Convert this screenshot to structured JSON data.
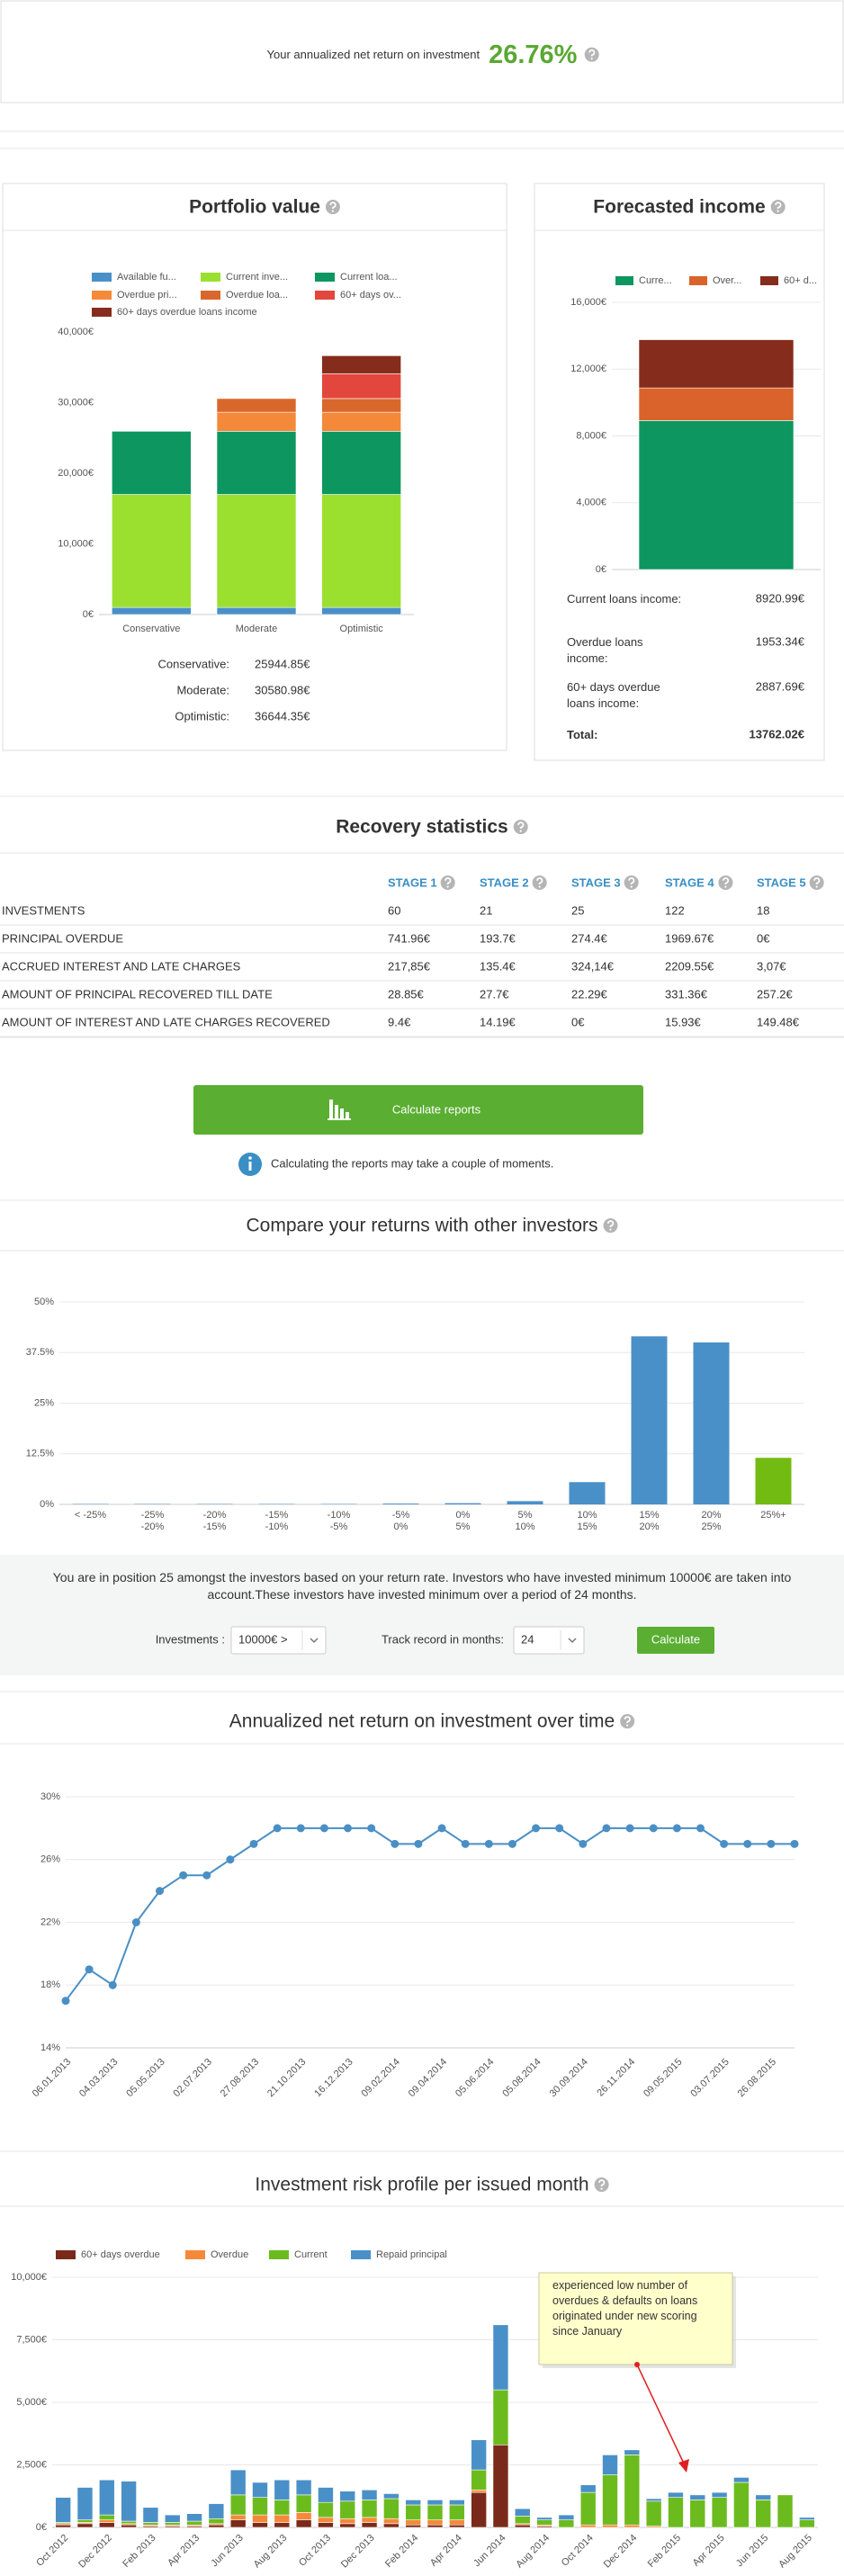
{
  "header": {
    "text": "Your annualized net return on investment",
    "value": "26.76%"
  },
  "chart_data": [
    {
      "type": "bar",
      "stacked": true,
      "title": "Portfolio value",
      "categories": [
        "Conservative",
        "Moderate",
        "Optimistic"
      ],
      "series": [
        {
          "name": "Available fu...",
          "color": "#4a90c8",
          "values": [
            1000,
            1000,
            1000
          ]
        },
        {
          "name": "Current inve...",
          "color": "#9be02f",
          "values": [
            16000,
            16000,
            16000
          ]
        },
        {
          "name": "Current loa...",
          "color": "#0e9660",
          "values": [
            8945,
            8945,
            8945
          ]
        },
        {
          "name": "Overdue pri...",
          "color": "#f5893a",
          "values": [
            0,
            2700,
            2700
          ]
        },
        {
          "name": "Overdue loa...",
          "color": "#d9672c",
          "values": [
            0,
            1936,
            1936
          ]
        },
        {
          "name": "60+ days ov...",
          "color": "#e2463c",
          "values": [
            0,
            0,
            3500
          ]
        },
        {
          "name": "60+ days overdue loans income",
          "color": "#862c1c",
          "values": [
            0,
            0,
            2563
          ]
        }
      ],
      "ylim": [
        0,
        40000
      ],
      "yticks": [
        {
          "value": 0,
          "label": "0€"
        },
        {
          "value": 10000,
          "label": "10,000€"
        },
        {
          "value": 20000,
          "label": "20,000€"
        },
        {
          "value": 30000,
          "label": "30,000€"
        },
        {
          "value": 40000,
          "label": "40,000€"
        }
      ],
      "grid": false
    },
    {
      "type": "bar",
      "stacked": true,
      "title": "Forecasted income",
      "categories": [
        null
      ],
      "series": [
        {
          "name": "Curre...",
          "color": "#0e9660",
          "values": [
            8920.99
          ]
        },
        {
          "name": "Over...",
          "color": "#d9632a",
          "values": [
            1953.34
          ]
        },
        {
          "name": "60+ d...",
          "color": "#862c1c",
          "values": [
            2887.69
          ]
        }
      ],
      "ylim": [
        0,
        16000
      ],
      "yticks": [
        {
          "value": 0,
          "label": "0€"
        },
        {
          "value": 4000,
          "label": "4,000€"
        },
        {
          "value": 8000,
          "label": "8,000€"
        },
        {
          "value": 12000,
          "label": "12,000€"
        },
        {
          "value": 16000,
          "label": "16,000€"
        }
      ],
      "grid": true
    },
    {
      "type": "bar",
      "title": "Compare your returns with other investors",
      "categories": [
        [
          "< -25%"
        ],
        [
          "-25%",
          "-20%"
        ],
        [
          "-20%",
          "-15%"
        ],
        [
          "-15%",
          "-10%"
        ],
        [
          "-10%",
          "-5%"
        ],
        [
          "-5%",
          "0%"
        ],
        [
          "0%",
          "5%"
        ],
        [
          "5%",
          "10%"
        ],
        [
          "10%",
          "15%"
        ],
        [
          "15%",
          "20%"
        ],
        [
          "20%",
          "25%"
        ],
        [
          "25%+"
        ]
      ],
      "values": [
        0.1,
        0.1,
        0.1,
        0.1,
        0.1,
        0.2,
        0.3,
        0.8,
        5.5,
        41.5,
        40,
        11.5
      ],
      "colors": [
        "#4a90c8",
        "#4a90c8",
        "#4a90c8",
        "#4a90c8",
        "#4a90c8",
        "#4a90c8",
        "#4a90c8",
        "#4a90c8",
        "#4a90c8",
        "#4a90c8",
        "#4a90c8",
        "#72bb12"
      ],
      "ylim": [
        0,
        50
      ],
      "yticks": [
        {
          "value": 0,
          "label": "0%"
        },
        {
          "value": 12.5,
          "label": "12.5%"
        },
        {
          "value": 25,
          "label": "25%"
        },
        {
          "value": 37.5,
          "label": "37.5%"
        },
        {
          "value": 50,
          "label": "50%"
        }
      ],
      "grid": true
    },
    {
      "type": "line",
      "title": "Annualized net return on investment over time",
      "color": "#4a8fc4",
      "categories": [
        "06.01.2013",
        null,
        "04.03.2013",
        null,
        "05.05.2013",
        null,
        "02.07.2013",
        null,
        "27.08.2013",
        null,
        "21.10.2013",
        null,
        "16.12.2013",
        null,
        "09.02.2014",
        null,
        "09.04.2014",
        null,
        "05.06.2014",
        null,
        "05.08.2014",
        null,
        "30.09.2014",
        null,
        "26.11.2014",
        null,
        "09.05.2015",
        null,
        "03.07.2015",
        null,
        "26.08.2015",
        null
      ],
      "values": [
        17,
        19,
        18,
        22,
        24,
        25,
        25,
        26,
        27,
        28,
        28,
        28,
        28,
        28,
        27,
        27,
        28,
        27,
        27,
        27,
        28,
        28,
        27,
        28,
        28,
        28,
        28,
        28,
        27,
        27,
        27,
        27
      ],
      "ylim": [
        14,
        30
      ],
      "yticks": [
        {
          "value": 14,
          "label": "14%"
        },
        {
          "value": 18,
          "label": "18%"
        },
        {
          "value": 22,
          "label": "22%"
        },
        {
          "value": 26,
          "label": "26%"
        },
        {
          "value": 30,
          "label": "30%"
        }
      ],
      "grid": true
    },
    {
      "type": "bar",
      "stacked": true,
      "title": "Investment risk profile per issued month",
      "categories": [
        "Oct 2012",
        null,
        "Dec 2012",
        null,
        "Feb 2013",
        null,
        "Apr 2013",
        null,
        "Jun 2013",
        null,
        "Aug 2013",
        null,
        "Oct 2013",
        null,
        "Dec 2013",
        null,
        "Feb 2014",
        null,
        "Apr 2014",
        null,
        "Jun 2014",
        null,
        "Aug 2014",
        null,
        "Oct 2014",
        null,
        "Dec 2014",
        null,
        "Feb 2015",
        null,
        "Apr 2015",
        null,
        "Jun 2015",
        null,
        "Aug 2015"
      ],
      "series": [
        {
          "name": "60+ days overdue",
          "color": "#7a2a1a",
          "values": [
            100,
            150,
            200,
            100,
            50,
            50,
            50,
            100,
            300,
            200,
            200,
            300,
            200,
            150,
            200,
            150,
            100,
            100,
            100,
            1400,
            3300,
            100,
            50,
            0,
            0,
            0,
            0,
            0,
            0,
            0,
            0,
            0,
            0,
            0,
            0
          ]
        },
        {
          "name": "Overdue",
          "color": "#f5893a",
          "values": [
            50,
            50,
            100,
            50,
            50,
            50,
            50,
            50,
            200,
            300,
            300,
            300,
            200,
            200,
            200,
            200,
            200,
            200,
            200,
            100,
            0,
            50,
            50,
            0,
            100,
            100,
            100,
            50,
            0,
            0,
            0,
            0,
            0,
            0,
            0
          ]
        },
        {
          "name": "Current",
          "color": "#6cbb1e",
          "values": [
            50,
            100,
            200,
            100,
            100,
            100,
            150,
            200,
            800,
            700,
            600,
            700,
            600,
            700,
            700,
            800,
            600,
            600,
            600,
            800,
            2200,
            300,
            200,
            300,
            1300,
            2000,
            2800,
            1000,
            1200,
            1100,
            1200,
            1800,
            1100,
            1300,
            300
          ]
        },
        {
          "name": "Repaid principal",
          "color": "#4a90c8",
          "values": [
            1000,
            1300,
            1400,
            1600,
            600,
            300,
            300,
            600,
            1000,
            600,
            800,
            600,
            600,
            400,
            400,
            200,
            200,
            200,
            200,
            1200,
            2600,
            300,
            100,
            200,
            300,
            800,
            200,
            100,
            200,
            200,
            200,
            200,
            200,
            0,
            100
          ]
        }
      ],
      "ylim": [
        0,
        10000
      ],
      "yticks": [
        {
          "value": 0,
          "label": "0€"
        },
        {
          "value": 2500,
          "label": "2,500€"
        },
        {
          "value": 5000,
          "label": "5,000€"
        },
        {
          "value": 7500,
          "label": "7,500€"
        },
        {
          "value": 10000,
          "label": "10,000€"
        }
      ],
      "grid": true,
      "annotation": "experienced low number of overdues & defaults on loans originated under new scoring since January"
    }
  ],
  "portfolio_summary": [
    {
      "label": "Conservative:",
      "value": "25944.85€"
    },
    {
      "label": "Moderate:",
      "value": "30580.98€"
    },
    {
      "label": "Optimistic:",
      "value": "36644.35€"
    }
  ],
  "forecast_summary": [
    {
      "label": "Current loans income:",
      "value": "8920.99€"
    },
    {
      "label": "Overdue loans income:",
      "value": "1953.34€"
    },
    {
      "label": "60+ days overdue loans income:",
      "value": "2887.69€"
    },
    {
      "label": "Total:",
      "value": "13762.02€"
    }
  ],
  "recovery": {
    "title": "Recovery statistics",
    "columns": [
      "STAGE 1",
      "STAGE 2",
      "STAGE 3",
      "STAGE 4",
      "STAGE 5"
    ],
    "rows": [
      [
        "INVESTMENTS",
        "60",
        "21",
        "25",
        "122",
        "18"
      ],
      [
        "PRINCIPAL OVERDUE",
        "741.96€",
        "193.7€",
        "274.4€",
        "1969.67€",
        "0€"
      ],
      [
        "ACCRUED INTEREST AND LATE CHARGES",
        "217,85€",
        "135.4€",
        "324,14€",
        "2209.55€",
        "3,07€"
      ],
      [
        "AMOUNT OF PRINCIPAL RECOVERED TILL DATE",
        "28.85€",
        "27.7€",
        "22.29€",
        "331.36€",
        "257.2€"
      ],
      [
        "AMOUNT OF INTEREST AND LATE CHARGES RECOVERED",
        "9.4€",
        "14.19€",
        "0€",
        "15.93€",
        "149.48€"
      ]
    ]
  },
  "reports": {
    "button": "Calculate reports",
    "note": "Calculating the reports may take a couple of moments."
  },
  "position": {
    "text": "You are in position 25 amongst the investors based on your return rate. Investors who have invested minimum 10000€ are taken into account.These investors have invested minimum over a period of 24 months.",
    "investments_label": "Investments :",
    "investments_value": "10000€ >",
    "track_label": "Track record in months:",
    "track_value": "24",
    "button": "Calculate"
  }
}
